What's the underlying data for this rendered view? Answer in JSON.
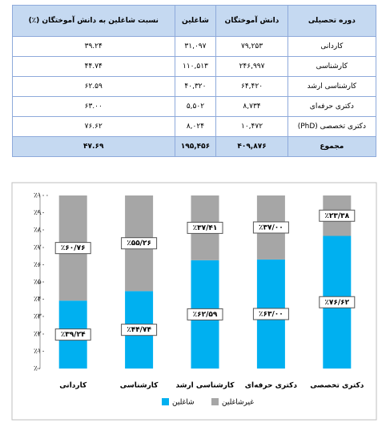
{
  "table": {
    "header": [
      "دوره تحصیلی",
      "دانش آموختگان",
      "شاغلین",
      "نسبت شاغلین به دانش آموختگان (٪)"
    ],
    "rows": [
      [
        "کاردانی",
        "۷۹,۲۵۳",
        "۳۱,۰۹۷",
        "۳۹.۲۴"
      ],
      [
        "کارشناسی",
        "۲۴۶,۹۹۷",
        "۱۱۰,۵۱۳",
        "۴۴.۷۴"
      ],
      [
        "کارشناسی ارشد",
        "۶۴,۴۲۰",
        "۴۰,۳۲۰",
        "۶۲.۵۹"
      ],
      [
        "دکتری حرفه‌ای",
        "۸,۷۳۴",
        "۵,۵۰۲",
        "۶۳.۰۰"
      ],
      [
        "دکتری تخصصی (PhD)",
        "۱۰,۴۷۲",
        "۸,۰۲۴",
        "۷۶.۶۲"
      ],
      [
        "مجموع",
        "۴۰۹,۸۷۶",
        "۱۹۵,۴۵۶",
        "۴۷.۶۹"
      ]
    ]
  },
  "chart_data": {
    "type": "stacked-bar",
    "categories": [
      "کاردانی",
      "کارشناسی",
      "کارشناسی ارشد",
      "دکتری حرفه‌ای",
      "دکتری تخصصی"
    ],
    "series": [
      {
        "name": "شاغلین",
        "color": "#00b0f0",
        "values": [
          39.24,
          44.74,
          62.59,
          63.0,
          76.62
        ],
        "value_labels": [
          "٪۳۹/۲۴",
          "٪۴۴/۷۴",
          "٪۶۲/۵۹",
          "٪۶۳/۰۰",
          "٪۷۶/۶۲"
        ]
      },
      {
        "name": "غیرشاغلین",
        "color": "#a6a6a6",
        "values": [
          60.76,
          55.26,
          37.41,
          37.0,
          23.38
        ],
        "value_labels": [
          "٪۶۰/۷۶",
          "٪۵۵/۲۶",
          "٪۳۷/۴۱",
          "٪۳۷/۰۰",
          "٪۲۳/۳۸"
        ]
      }
    ],
    "ylim": [
      0,
      100
    ],
    "yticks": [
      {
        "value": 0,
        "label": "٪۰"
      },
      {
        "value": 10,
        "label": "٪۱۰"
      },
      {
        "value": 20,
        "label": "٪۲۰"
      },
      {
        "value": 30,
        "label": "٪۳۰"
      },
      {
        "value": 40,
        "label": "٪۴۰"
      },
      {
        "value": 50,
        "label": "٪۵۰"
      },
      {
        "value": 60,
        "label": "٪۶۰"
      },
      {
        "value": 70,
        "label": "٪۷۰"
      },
      {
        "value": 80,
        "label": "٪۸۰"
      },
      {
        "value": 90,
        "label": "٪۹۰"
      },
      {
        "value": 100,
        "label": "٪۱۰۰"
      }
    ]
  }
}
